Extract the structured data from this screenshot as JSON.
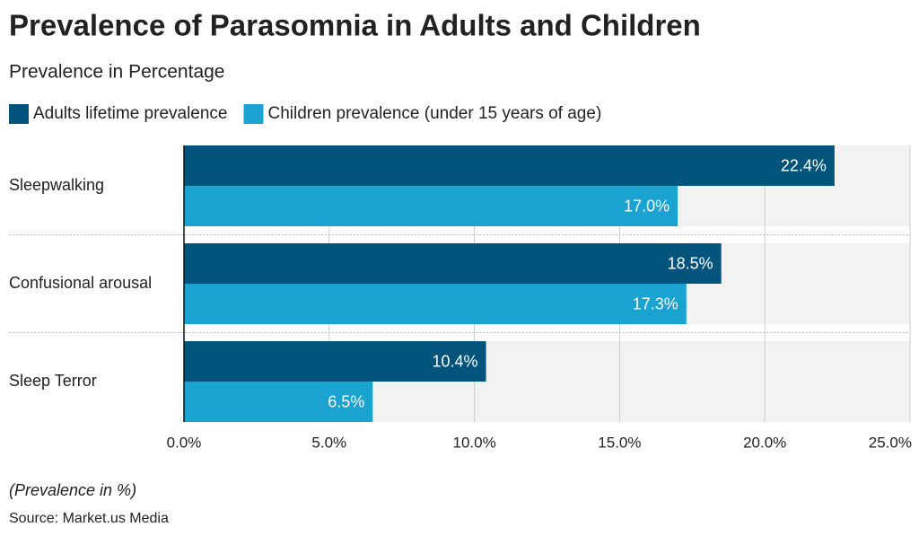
{
  "chart_data": {
    "type": "hbar",
    "title": "Prevalence of Parasomnia in Adults and Children",
    "subtitle": "Prevalence in Percentage",
    "categories": [
      "Sleepwalking",
      "Confusional arousal",
      "Sleep Terror"
    ],
    "series": [
      {
        "name": "Adults lifetime prevalence",
        "color": "#02547d",
        "values": [
          22.4,
          18.5,
          10.4
        ],
        "value_labels": [
          "22.4%",
          "18.5%",
          "10.4%"
        ]
      },
      {
        "name": "Children prevalence (under 15 years of age)",
        "color": "#1aa3d1",
        "values": [
          17.0,
          17.3,
          6.5
        ],
        "value_labels": [
          "17.0%",
          "17.3%",
          "6.5%"
        ]
      }
    ],
    "xlim": [
      0,
      25
    ],
    "xticks": [
      {
        "value": 0,
        "label": "0.0%"
      },
      {
        "value": 5,
        "label": "5.0%"
      },
      {
        "value": 10,
        "label": "10.0%"
      },
      {
        "value": 15,
        "label": "15.0%"
      },
      {
        "value": 20,
        "label": "20.0%"
      },
      {
        "value": 25,
        "label": "25.0%"
      }
    ],
    "grid": true,
    "note": "(Prevalence in %)",
    "source": "Source: Market.us Media"
  }
}
